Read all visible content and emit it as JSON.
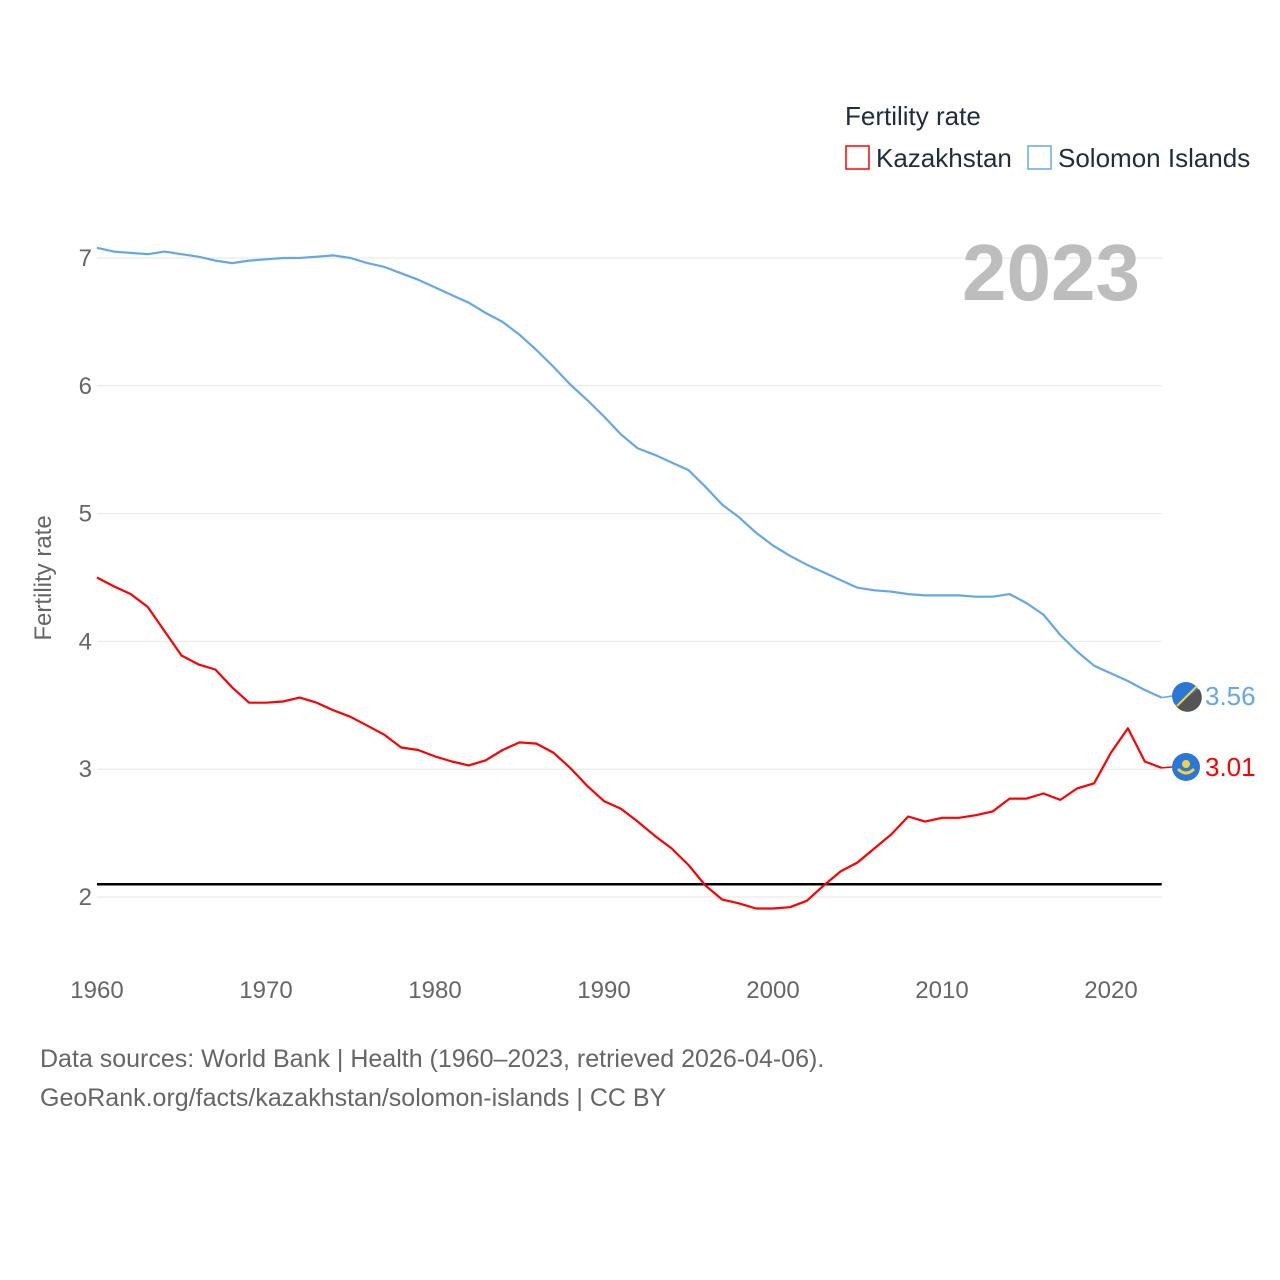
{
  "chart_data": {
    "type": "line",
    "title": "Fertility rate",
    "ylabel": "Fertility rate",
    "xlabel": "",
    "year_label": "2023",
    "xlim": [
      1960,
      2023
    ],
    "ylim": [
      1.5,
      7.3
    ],
    "x_ticks": [
      1960,
      1970,
      1980,
      1990,
      2000,
      2010,
      2020
    ],
    "y_ticks": [
      2,
      3,
      4,
      5,
      6,
      7
    ],
    "grid": true,
    "legend_position": "top-right",
    "reference_line": {
      "value": 2.1,
      "color": "#000000"
    },
    "x": [
      1960,
      1961,
      1962,
      1963,
      1964,
      1965,
      1966,
      1967,
      1968,
      1969,
      1970,
      1971,
      1972,
      1973,
      1974,
      1975,
      1976,
      1977,
      1978,
      1979,
      1980,
      1981,
      1982,
      1983,
      1984,
      1985,
      1986,
      1987,
      1988,
      1989,
      1990,
      1991,
      1992,
      1993,
      1994,
      1995,
      1996,
      1997,
      1998,
      1999,
      2000,
      2001,
      2002,
      2003,
      2004,
      2005,
      2006,
      2007,
      2008,
      2009,
      2010,
      2011,
      2012,
      2013,
      2014,
      2015,
      2016,
      2017,
      2018,
      2019,
      2020,
      2021,
      2022,
      2023
    ],
    "series": [
      {
        "name": "Kazakhstan",
        "color": "#ff0000",
        "end_label": "3.01",
        "flag": "kazakhstan-flag",
        "values": [
          4.5,
          4.43,
          4.37,
          4.27,
          4.08,
          3.89,
          3.82,
          3.78,
          3.64,
          3.52,
          3.52,
          3.53,
          3.56,
          3.52,
          3.46,
          3.41,
          3.34,
          3.27,
          3.17,
          3.15,
          3.1,
          3.06,
          3.03,
          3.07,
          3.15,
          3.21,
          3.2,
          3.13,
          3.01,
          2.87,
          2.75,
          2.69,
          2.59,
          2.48,
          2.38,
          2.25,
          2.09,
          1.98,
          1.95,
          1.91,
          1.91,
          1.92,
          1.97,
          2.09,
          2.2,
          2.27,
          2.38,
          2.49,
          2.63,
          2.59,
          2.62,
          2.62,
          2.64,
          2.67,
          2.77,
          2.77,
          2.81,
          2.76,
          2.85,
          2.89,
          3.13,
          3.32,
          3.06,
          3.01
        ]
      },
      {
        "name": "Solomon Islands",
        "color": "#64a8ea",
        "end_label": "3.56",
        "flag": "solomon-islands-flag",
        "values": [
          7.08,
          7.05,
          7.04,
          7.03,
          7.05,
          7.03,
          7.01,
          6.98,
          6.96,
          6.98,
          6.99,
          7.0,
          7.0,
          7.01,
          7.02,
          7.0,
          6.96,
          6.93,
          6.88,
          6.83,
          6.77,
          6.71,
          6.65,
          6.57,
          6.5,
          6.4,
          6.28,
          6.15,
          6.01,
          5.89,
          5.76,
          5.62,
          5.51,
          5.46,
          5.4,
          5.34,
          5.21,
          5.07,
          4.97,
          4.85,
          4.75,
          4.67,
          4.6,
          4.54,
          4.48,
          4.42,
          4.4,
          4.39,
          4.37,
          4.36,
          4.36,
          4.36,
          4.35,
          4.35,
          4.37,
          4.3,
          4.21,
          4.05,
          3.92,
          3.81,
          3.75,
          3.69,
          3.62,
          3.56
        ]
      }
    ]
  },
  "footer": {
    "line1": "Data sources: World Bank | Health (1960–2023, retrieved 2026-04-06).",
    "line2": "GeoRank.org/facts/kazakhstan/solomon-islands | CC BY"
  }
}
